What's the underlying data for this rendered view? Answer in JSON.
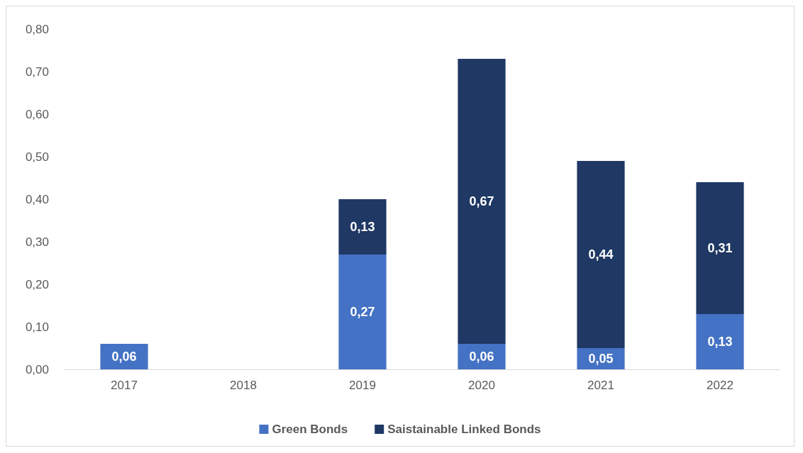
{
  "chart_data": {
    "type": "bar",
    "stacked": true,
    "categories": [
      "2017",
      "2018",
      "2019",
      "2020",
      "2021",
      "2022"
    ],
    "series": [
      {
        "name": "Green Bonds",
        "color": "#4472c4",
        "values": [
          0.06,
          null,
          0.27,
          0.06,
          0.05,
          0.13
        ],
        "value_labels": [
          "0,06",
          null,
          "0,27",
          "0,06",
          "0,05",
          "0,13"
        ]
      },
      {
        "name": "Saistainable Linked Bonds",
        "color": "#1f3864",
        "values": [
          null,
          null,
          0.13,
          0.67,
          0.44,
          0.31
        ],
        "value_labels": [
          null,
          null,
          "0,13",
          "0,67",
          "0,44",
          "0,31"
        ]
      }
    ],
    "ylim": [
      0,
      0.8
    ],
    "yticks": [
      {
        "value": 0,
        "label": "0,00"
      },
      {
        "value": 0.1,
        "label": "0,10"
      },
      {
        "value": 0.2,
        "label": "0,20"
      },
      {
        "value": 0.3,
        "label": "0,30"
      },
      {
        "value": 0.4,
        "label": "0,40"
      },
      {
        "value": 0.5,
        "label": "0,50"
      },
      {
        "value": 0.6,
        "label": "0,60"
      },
      {
        "value": 0.7,
        "label": "0,70"
      },
      {
        "value": 0.8,
        "label": "0,80"
      }
    ],
    "grid": false,
    "legend": "bottom"
  }
}
